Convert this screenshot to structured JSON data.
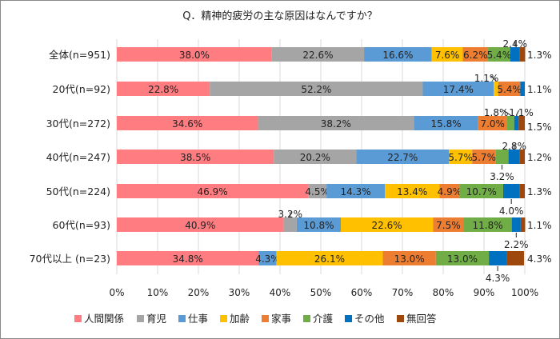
{
  "chart_data": {
    "type": "bar",
    "orientation": "horizontal-stacked-100",
    "title": "Q．精神的疲労の主な原因はなんですか？",
    "categories": [
      "全体(n=951)",
      "20代(n=92)",
      "30代(n=272)",
      "40代(n=247)",
      "50代(n=224)",
      "60代(n=93)",
      "70代以上 (n=23)"
    ],
    "xlim": [
      0,
      100
    ],
    "xticks": [
      "0%",
      "10%",
      "20%",
      "30%",
      "40%",
      "50%",
      "60%",
      "70%",
      "80%",
      "90%",
      "100%"
    ],
    "grid": true,
    "legend": "bottom",
    "series": [
      {
        "name": "人間関係",
        "color": "#ff7c80",
        "values": [
          38.0,
          22.8,
          34.6,
          38.5,
          46.9,
          40.9,
          34.8
        ]
      },
      {
        "name": "育児",
        "color": "#a5a5a5",
        "values": [
          22.6,
          52.2,
          38.2,
          20.2,
          4.5,
          3.2,
          0
        ]
      },
      {
        "name": "仕事",
        "color": "#5b9bd5",
        "values": [
          16.6,
          17.4,
          15.8,
          22.7,
          14.3,
          10.8,
          4.3
        ]
      },
      {
        "name": "加齢",
        "color": "#ffc000",
        "values": [
          7.6,
          1.1,
          0,
          5.7,
          13.4,
          22.6,
          26.1
        ]
      },
      {
        "name": "家事",
        "color": "#ed7d31",
        "values": [
          6.2,
          5.4,
          7.0,
          5.7,
          4.9,
          7.5,
          13.0
        ]
      },
      {
        "name": "介護",
        "color": "#70ad47",
        "values": [
          5.4,
          0,
          1.8,
          3.2,
          10.7,
          11.8,
          13.0
        ]
      },
      {
        "name": "その他",
        "color": "#0070c0",
        "values": [
          2.4,
          1.1,
          1.1,
          2.8,
          4.0,
          2.2,
          4.3
        ]
      },
      {
        "name": "無回答",
        "color": "#9e480e",
        "values": [
          1.3,
          0,
          1.5,
          1.2,
          1.3,
          1.1,
          4.3
        ]
      }
    ]
  }
}
